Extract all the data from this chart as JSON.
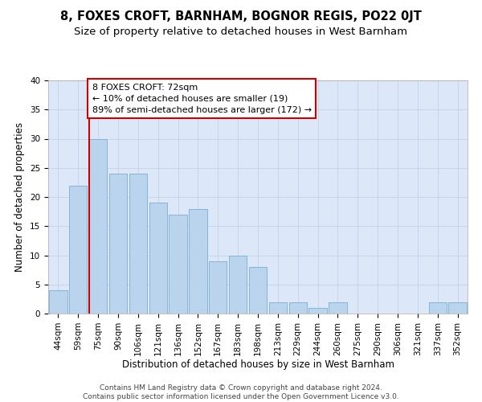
{
  "title": "8, FOXES CROFT, BARNHAM, BOGNOR REGIS, PO22 0JT",
  "subtitle": "Size of property relative to detached houses in West Barnham",
  "xlabel": "Distribution of detached houses by size in West Barnham",
  "ylabel": "Number of detached properties",
  "bar_labels": [
    "44sqm",
    "59sqm",
    "75sqm",
    "90sqm",
    "106sqm",
    "121sqm",
    "136sqm",
    "152sqm",
    "167sqm",
    "183sqm",
    "198sqm",
    "213sqm",
    "229sqm",
    "244sqm",
    "260sqm",
    "275sqm",
    "290sqm",
    "306sqm",
    "321sqm",
    "337sqm",
    "352sqm"
  ],
  "bar_values": [
    4,
    22,
    30,
    24,
    24,
    19,
    17,
    18,
    9,
    10,
    8,
    2,
    2,
    1,
    2,
    0,
    0,
    0,
    0,
    2,
    2
  ],
  "bar_color": "#bad4ee",
  "bar_edge_color": "#7aadd4",
  "marker_line_color": "#cc0000",
  "annotation_text": "8 FOXES CROFT: 72sqm\n← 10% of detached houses are smaller (19)\n89% of semi-detached houses are larger (172) →",
  "annotation_box_color": "#ffffff",
  "annotation_box_edge": "#cc0000",
  "ylim": [
    0,
    40
  ],
  "yticks": [
    0,
    5,
    10,
    15,
    20,
    25,
    30,
    35,
    40
  ],
  "grid_color": "#c8d4e8",
  "background_color": "#dce8f8",
  "footer_text": "Contains HM Land Registry data © Crown copyright and database right 2024.\nContains public sector information licensed under the Open Government Licence v3.0.",
  "title_fontsize": 10.5,
  "subtitle_fontsize": 9.5,
  "axis_label_fontsize": 8.5,
  "tick_fontsize": 7.5,
  "annotation_fontsize": 8,
  "footer_fontsize": 6.5
}
